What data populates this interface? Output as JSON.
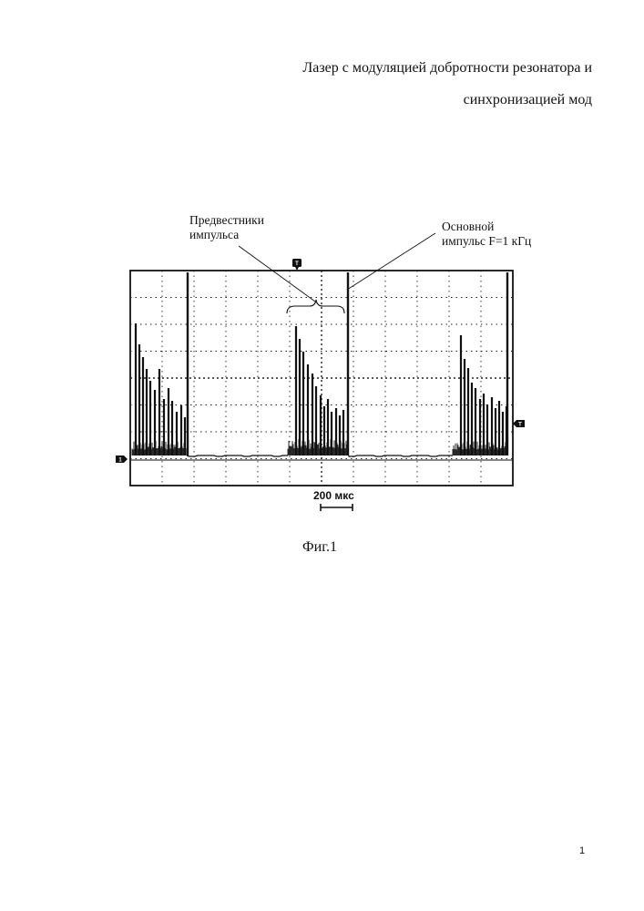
{
  "header": {
    "title_line1": "Лазер с модуляцией добротности резонатора и",
    "title_line2": "синхронизацией мод"
  },
  "annotations": {
    "precursors_line1": "Предвестники",
    "precursors_line2": "импульса",
    "main_line1": "Основной",
    "main_line2": "импульс F=1 кГц"
  },
  "oscillogram": {
    "trigger_marker": "T",
    "level_marker": "T",
    "channel_marker": "1",
    "scale_label": "200 мкс",
    "colors": {
      "trace": "#111111",
      "grid": "#222222",
      "marker": "#111111"
    }
  },
  "caption": "Фиг.1",
  "page_number": "1"
}
